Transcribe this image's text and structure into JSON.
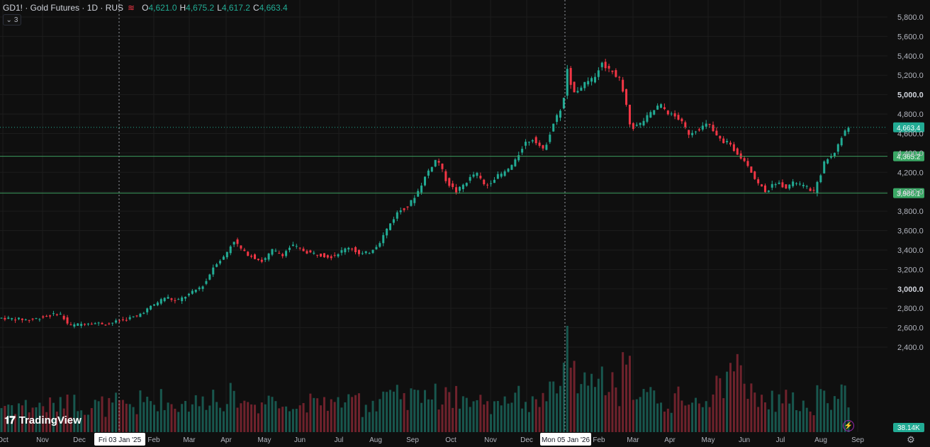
{
  "header": {
    "title": "GD1! · Gold Futures · 1D · RUS",
    "open_key": "O",
    "open": "4,621.0",
    "high_key": "H",
    "high": "4,675.2",
    "low_key": "L",
    "low": "4,617.2",
    "close_key": "C",
    "close": "4,663.4",
    "collapse_count": "3"
  },
  "branding": {
    "name": "TradingView"
  },
  "colors": {
    "up": "#22ab94",
    "down": "#f23645",
    "hline": "#3d9b5e",
    "bg": "#0f0f0f"
  },
  "icons": {
    "settings": "gear-icon",
    "collapse": "chevron-down-icon",
    "replay": "lightning-icon"
  },
  "chart_data": {
    "type": "candlestick",
    "price_axis_ticks": [
      "5,800.0",
      "5,600.0",
      "5,400.0",
      "5,200.0",
      "5,000.0",
      "4,800.0",
      "4,600.0",
      "4,400.0",
      "4,200.0",
      "4,000.0",
      "3,800.0",
      "3,600.0",
      "3,400.0",
      "3,200.0",
      "3,000.0",
      "2,800.0",
      "2,600.0",
      "2,400.0"
    ],
    "time_axis_ticks": [
      "Oct",
      "Nov",
      "Dec",
      "Feb",
      "Mar",
      "Apr",
      "May",
      "Jun",
      "Jul",
      "Aug",
      "Sep",
      "Oct",
      "Nov",
      "Dec",
      "Feb",
      "Mar",
      "Apr",
      "May",
      "Jun",
      "Jul",
      "Aug",
      "Sep"
    ],
    "crosshair_dates": [
      "Fri 03 Jan '25",
      "Mon 05 Jan '26"
    ],
    "horizontal_lines": [
      4365.2,
      3986.1
    ],
    "horizontal_line_labels": [
      "4,365.2",
      "3,986.1"
    ],
    "last_price": 4663.4,
    "last_price_label": "4,663.4",
    "volume_label": "38.14K",
    "ylim": [
      2300,
      5900
    ],
    "price_path": [
      [
        0,
        2700
      ],
      [
        6,
        2680
      ],
      [
        12,
        2750
      ],
      [
        14,
        2620
      ],
      [
        18,
        2650
      ],
      [
        22,
        2640
      ],
      [
        25,
        2680
      ],
      [
        28,
        2720
      ],
      [
        31,
        2820
      ],
      [
        34,
        2920
      ],
      [
        36,
        2870
      ],
      [
        39,
        2950
      ],
      [
        42,
        3050
      ],
      [
        44,
        3250
      ],
      [
        46,
        3330
      ],
      [
        48,
        3500
      ],
      [
        50,
        3380
      ],
      [
        52,
        3330
      ],
      [
        54,
        3280
      ],
      [
        56,
        3400
      ],
      [
        58,
        3350
      ],
      [
        60,
        3450
      ],
      [
        63,
        3380
      ],
      [
        66,
        3350
      ],
      [
        68,
        3330
      ],
      [
        70,
        3380
      ],
      [
        72,
        3440
      ],
      [
        74,
        3350
      ],
      [
        76,
        3380
      ],
      [
        78,
        3470
      ],
      [
        80,
        3650
      ],
      [
        82,
        3800
      ],
      [
        84,
        3850
      ],
      [
        86,
        4000
      ],
      [
        88,
        4200
      ],
      [
        90,
        4350
      ],
      [
        92,
        4100
      ],
      [
        94,
        4000
      ],
      [
        96,
        4100
      ],
      [
        98,
        4200
      ],
      [
        100,
        4050
      ],
      [
        102,
        4150
      ],
      [
        104,
        4200
      ],
      [
        106,
        4300
      ],
      [
        108,
        4500
      ],
      [
        110,
        4550
      ],
      [
        112,
        4420
      ],
      [
        114,
        4700
      ],
      [
        116,
        4900
      ],
      [
        117,
        5300
      ],
      [
        118,
        5000
      ],
      [
        120,
        5100
      ],
      [
        122,
        5150
      ],
      [
        124,
        5320
      ],
      [
        126,
        5250
      ],
      [
        128,
        5150
      ],
      [
        130,
        4650
      ],
      [
        132,
        4700
      ],
      [
        134,
        4800
      ],
      [
        136,
        4900
      ],
      [
        138,
        4800
      ],
      [
        140,
        4750
      ],
      [
        142,
        4600
      ],
      [
        144,
        4650
      ],
      [
        146,
        4700
      ],
      [
        148,
        4550
      ],
      [
        150,
        4500
      ],
      [
        152,
        4400
      ],
      [
        154,
        4300
      ],
      [
        156,
        4100
      ],
      [
        158,
        4000
      ],
      [
        160,
        4100
      ],
      [
        162,
        4050
      ],
      [
        164,
        4100
      ],
      [
        166,
        4050
      ],
      [
        168,
        4000
      ],
      [
        170,
        4300
      ],
      [
        172,
        4400
      ],
      [
        174,
        4600
      ],
      [
        175,
        4663.4
      ]
    ]
  }
}
